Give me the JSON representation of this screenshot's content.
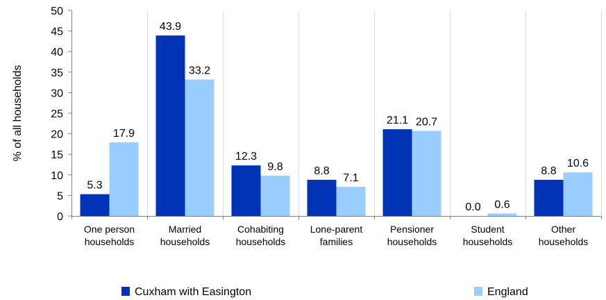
{
  "chart_data": {
    "type": "bar",
    "ylabel": "% of all households",
    "xlabel": "",
    "ylim": [
      0,
      50
    ],
    "yticks": [
      0,
      5,
      10,
      15,
      20,
      25,
      30,
      35,
      40,
      45,
      50
    ],
    "grid": "vertical-separators",
    "legend_position": "bottom",
    "categories": [
      [
        "One person",
        "households"
      ],
      [
        "Married",
        "households"
      ],
      [
        "Cohabiting",
        "households"
      ],
      [
        "Lone-parent",
        "families"
      ],
      [
        "Pensioner",
        "households"
      ],
      [
        "Student",
        "households"
      ],
      [
        "Other",
        "households"
      ]
    ],
    "series": [
      {
        "name": "Cuxham with Easington",
        "color": "#0033B5",
        "values": [
          5.3,
          43.9,
          12.3,
          8.8,
          21.1,
          0.0,
          8.8
        ],
        "labels": [
          "5.3",
          "43.9",
          "12.3",
          "8.8",
          "21.1",
          "0.0",
          "8.8"
        ]
      },
      {
        "name": "England",
        "color": "#99CCFF",
        "values": [
          17.9,
          33.2,
          9.8,
          7.1,
          20.7,
          0.6,
          10.6
        ],
        "labels": [
          "17.9",
          "33.2",
          "9.8",
          "7.1",
          "20.7",
          "0.6",
          "10.6"
        ]
      }
    ]
  }
}
